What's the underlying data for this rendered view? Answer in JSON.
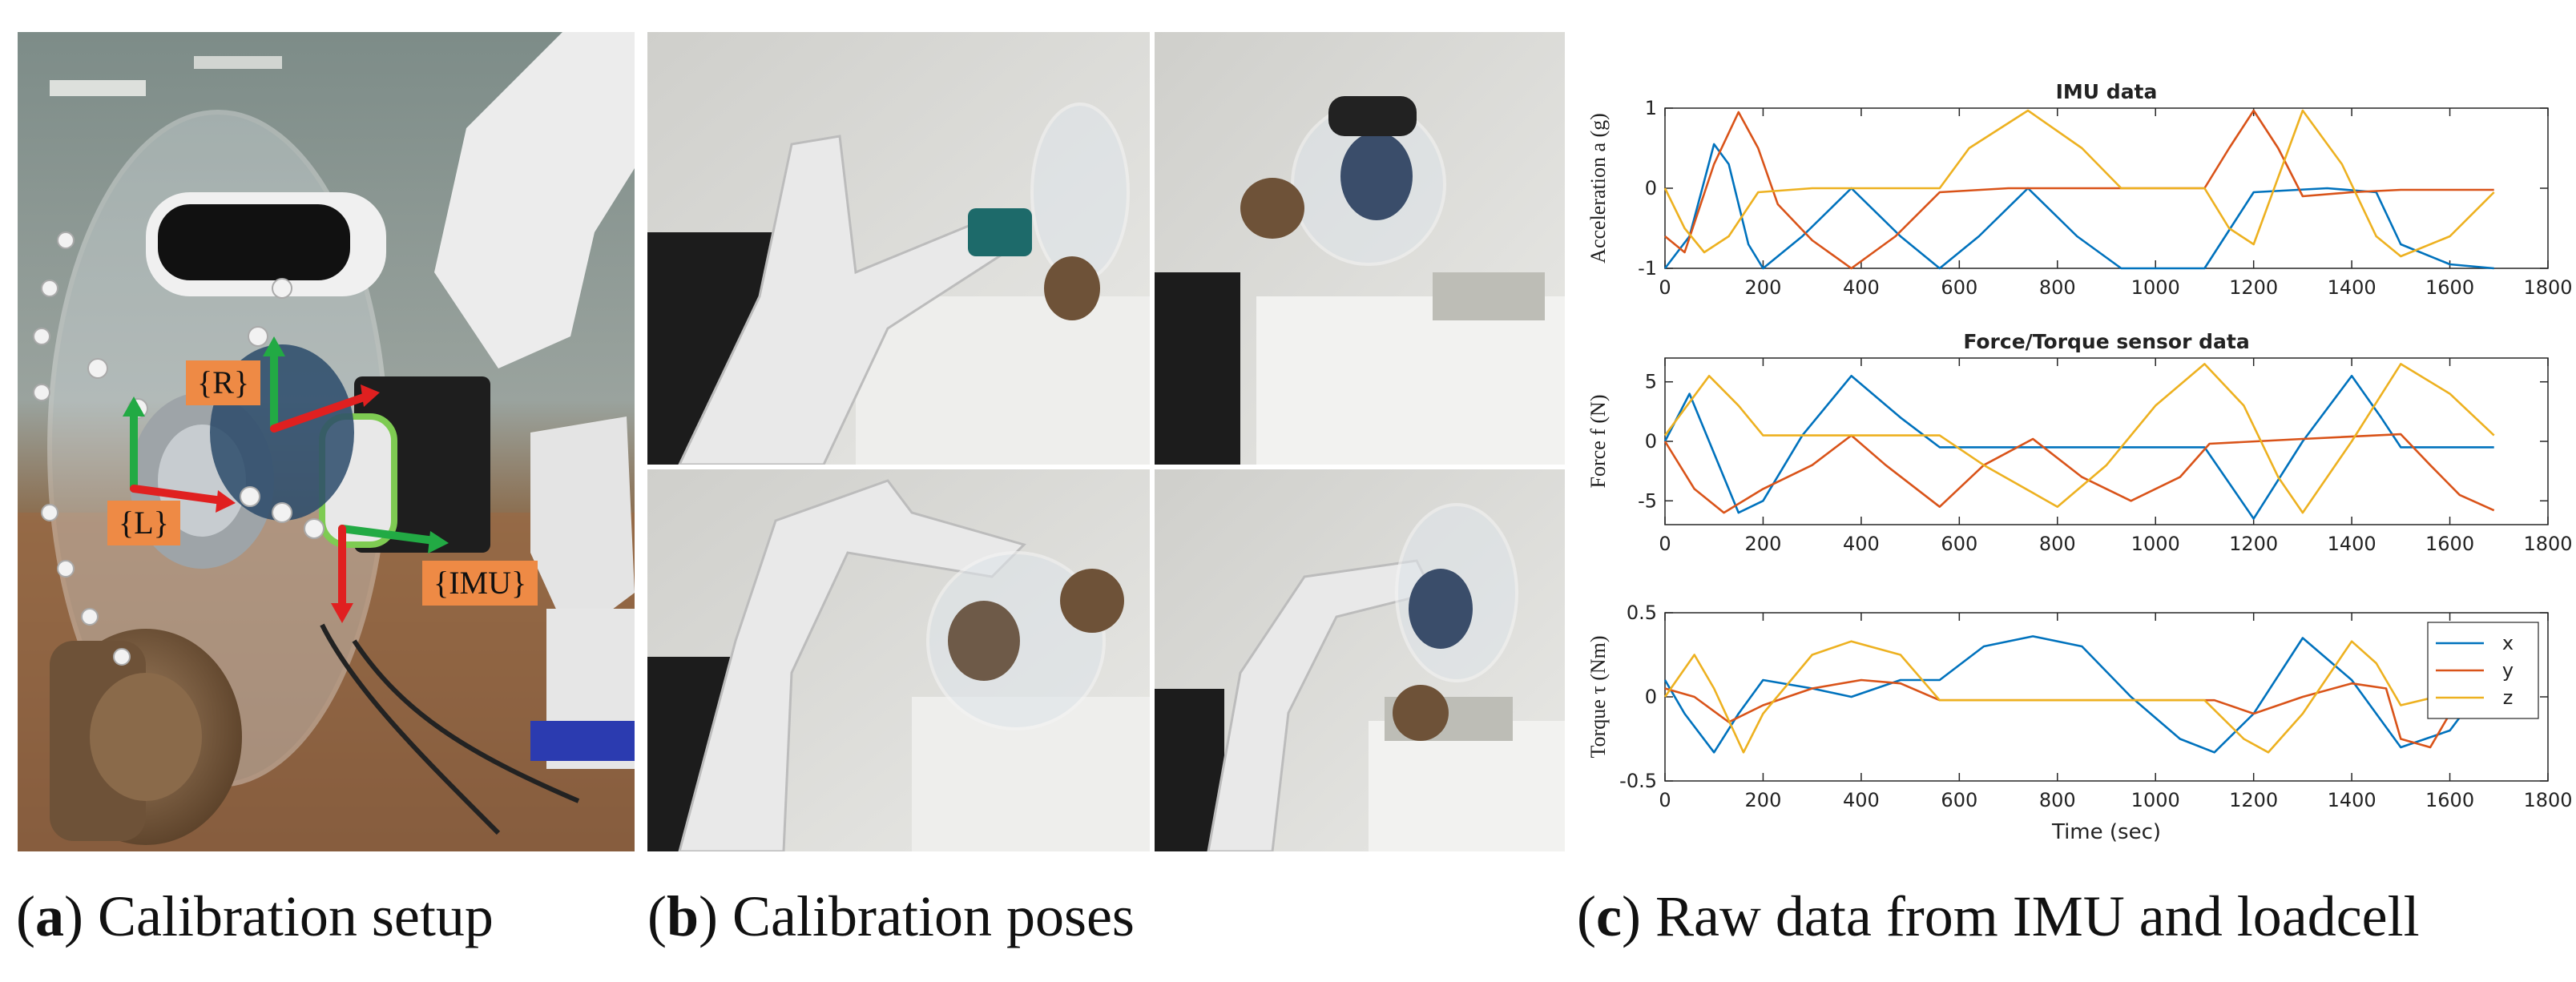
{
  "captions": {
    "a": {
      "letter": "a",
      "text": " Calibration setup"
    },
    "b": {
      "letter": "b",
      "text": " Calibration poses"
    },
    "c": {
      "letter": "c",
      "text": " Raw data from IMU and loadcell"
    }
  },
  "frame_labels": {
    "R": "{R}",
    "L": "{L}",
    "IMU": "{IMU}"
  },
  "colors": {
    "x": "#0072BD",
    "y": "#D95319",
    "z": "#EDB120",
    "robot": "#e9e9e9",
    "frame_label_bg": "#ee8a45",
    "axis_green": "#22aa44",
    "axis_red": "#e02020"
  },
  "chart_data": [
    {
      "type": "line",
      "title": "IMU data",
      "xlabel": "",
      "ylabel": "Acceleration a (g)",
      "xlim": [
        0,
        1800
      ],
      "ylim": [
        -1,
        1
      ],
      "xticks": [
        0,
        200,
        400,
        600,
        800,
        1000,
        1200,
        1400,
        1600,
        1800
      ],
      "yticks": [
        -1,
        0,
        1
      ],
      "series": [
        {
          "key": "x",
          "color": "#0072BD",
          "points": [
            [
              0,
              -1
            ],
            [
              50,
              -0.6
            ],
            [
              100,
              0.55
            ],
            [
              130,
              0.3
            ],
            [
              170,
              -0.7
            ],
            [
              200,
              -1
            ],
            [
              280,
              -0.6
            ],
            [
              380,
              0
            ],
            [
              480,
              -0.6
            ],
            [
              560,
              -1
            ],
            [
              640,
              -0.6
            ],
            [
              740,
              0
            ],
            [
              840,
              -0.6
            ],
            [
              930,
              -1
            ],
            [
              1100,
              -1
            ],
            [
              1200,
              -0.05
            ],
            [
              1350,
              0
            ],
            [
              1450,
              -0.05
            ],
            [
              1500,
              -0.7
            ],
            [
              1600,
              -0.95
            ],
            [
              1690,
              -1
            ]
          ]
        },
        {
          "key": "y",
          "color": "#D95319",
          "points": [
            [
              0,
              -0.6
            ],
            [
              40,
              -0.8
            ],
            [
              100,
              0.3
            ],
            [
              150,
              0.95
            ],
            [
              190,
              0.5
            ],
            [
              230,
              -0.2
            ],
            [
              300,
              -0.65
            ],
            [
              380,
              -1
            ],
            [
              470,
              -0.6
            ],
            [
              560,
              -0.05
            ],
            [
              700,
              0
            ],
            [
              900,
              0
            ],
            [
              1100,
              0
            ],
            [
              1150,
              0.5
            ],
            [
              1200,
              0.97
            ],
            [
              1250,
              0.5
            ],
            [
              1300,
              -0.1
            ],
            [
              1400,
              -0.05
            ],
            [
              1500,
              -0.02
            ],
            [
              1690,
              -0.02
            ]
          ]
        },
        {
          "key": "z",
          "color": "#EDB120",
          "points": [
            [
              0,
              0
            ],
            [
              40,
              -0.5
            ],
            [
              80,
              -0.8
            ],
            [
              130,
              -0.6
            ],
            [
              190,
              -0.05
            ],
            [
              300,
              0
            ],
            [
              560,
              0
            ],
            [
              620,
              0.5
            ],
            [
              740,
              0.97
            ],
            [
              850,
              0.5
            ],
            [
              930,
              0
            ],
            [
              1100,
              0
            ],
            [
              1150,
              -0.5
            ],
            [
              1200,
              -0.7
            ],
            [
              1300,
              0.97
            ],
            [
              1380,
              0.3
            ],
            [
              1450,
              -0.6
            ],
            [
              1500,
              -0.85
            ],
            [
              1600,
              -0.6
            ],
            [
              1690,
              -0.05
            ]
          ]
        }
      ]
    },
    {
      "type": "line",
      "title": "Force/Torque sensor data",
      "xlabel": "",
      "ylabel": "Force f (N)",
      "xlim": [
        0,
        1800
      ],
      "ylim": [
        -7,
        7
      ],
      "xticks": [
        0,
        200,
        400,
        600,
        800,
        1000,
        1200,
        1400,
        1600,
        1800
      ],
      "yticks": [
        -5,
        0,
        5
      ],
      "series": [
        {
          "key": "x",
          "color": "#0072BD",
          "points": [
            [
              0,
              0
            ],
            [
              50,
              4
            ],
            [
              100,
              -1
            ],
            [
              150,
              -6
            ],
            [
              200,
              -5
            ],
            [
              280,
              0.5
            ],
            [
              380,
              5.5
            ],
            [
              480,
              2
            ],
            [
              560,
              -0.5
            ],
            [
              700,
              -0.5
            ],
            [
              900,
              -0.5
            ],
            [
              1100,
              -0.5
            ],
            [
              1200,
              -6.5
            ],
            [
              1300,
              0
            ],
            [
              1400,
              5.5
            ],
            [
              1460,
              2
            ],
            [
              1500,
              -0.5
            ],
            [
              1690,
              -0.5
            ]
          ]
        },
        {
          "key": "y",
          "color": "#D95319",
          "points": [
            [
              0,
              0
            ],
            [
              60,
              -4
            ],
            [
              120,
              -6
            ],
            [
              200,
              -4
            ],
            [
              300,
              -2
            ],
            [
              380,
              0.5
            ],
            [
              450,
              -2
            ],
            [
              560,
              -5.5
            ],
            [
              650,
              -2
            ],
            [
              750,
              0.2
            ],
            [
              850,
              -3
            ],
            [
              950,
              -5
            ],
            [
              1050,
              -3
            ],
            [
              1110,
              -0.2
            ],
            [
              1300,
              0.2
            ],
            [
              1500,
              0.6
            ],
            [
              1560,
              -2
            ],
            [
              1620,
              -4.5
            ],
            [
              1690,
              -5.8
            ]
          ]
        },
        {
          "key": "z",
          "color": "#EDB120",
          "points": [
            [
              0,
              0.5
            ],
            [
              90,
              5.5
            ],
            [
              150,
              3
            ],
            [
              200,
              0.5
            ],
            [
              560,
              0.5
            ],
            [
              650,
              -2
            ],
            [
              800,
              -5.5
            ],
            [
              900,
              -2
            ],
            [
              1000,
              3
            ],
            [
              1100,
              6.5
            ],
            [
              1180,
              3
            ],
            [
              1250,
              -3
            ],
            [
              1300,
              -6
            ],
            [
              1400,
              0
            ],
            [
              1500,
              6.5
            ],
            [
              1600,
              4
            ],
            [
              1690,
              0.5
            ]
          ]
        }
      ]
    },
    {
      "type": "line",
      "title": "",
      "xlabel": "Time (sec)",
      "ylabel": "Torque τ (Nm)",
      "xlim": [
        0,
        1800
      ],
      "ylim": [
        -0.5,
        0.5
      ],
      "xticks": [
        0,
        200,
        400,
        600,
        800,
        1000,
        1200,
        1400,
        1600,
        1800
      ],
      "yticks": [
        -0.5,
        0,
        0.5
      ],
      "legend": {
        "placement": "top-right",
        "entries": [
          "x",
          "y",
          "z"
        ]
      },
      "series": [
        {
          "key": "x",
          "name": "x",
          "color": "#0072BD",
          "points": [
            [
              0,
              0.1
            ],
            [
              40,
              -0.1
            ],
            [
              100,
              -0.33
            ],
            [
              150,
              -0.1
            ],
            [
              200,
              0.1
            ],
            [
              300,
              0.05
            ],
            [
              380,
              0
            ],
            [
              480,
              0.1
            ],
            [
              560,
              0.1
            ],
            [
              650,
              0.3
            ],
            [
              750,
              0.36
            ],
            [
              850,
              0.3
            ],
            [
              950,
              0
            ],
            [
              1050,
              -0.25
            ],
            [
              1120,
              -0.33
            ],
            [
              1200,
              -0.1
            ],
            [
              1300,
              0.35
            ],
            [
              1400,
              0.1
            ],
            [
              1500,
              -0.3
            ],
            [
              1600,
              -0.2
            ],
            [
              1690,
              0.15
            ]
          ]
        },
        {
          "key": "y",
          "name": "y",
          "color": "#D95319",
          "points": [
            [
              0,
              0.05
            ],
            [
              60,
              0
            ],
            [
              130,
              -0.15
            ],
            [
              200,
              -0.05
            ],
            [
              300,
              0.05
            ],
            [
              400,
              0.1
            ],
            [
              480,
              0.08
            ],
            [
              560,
              -0.02
            ],
            [
              800,
              -0.02
            ],
            [
              1000,
              -0.02
            ],
            [
              1120,
              -0.02
            ],
            [
              1200,
              -0.1
            ],
            [
              1300,
              0
            ],
            [
              1400,
              0.08
            ],
            [
              1470,
              0.05
            ],
            [
              1500,
              -0.25
            ],
            [
              1560,
              -0.3
            ],
            [
              1600,
              -0.1
            ],
            [
              1690,
              0.05
            ]
          ]
        },
        {
          "key": "z",
          "name": "z",
          "color": "#EDB120",
          "points": [
            [
              0,
              0
            ],
            [
              60,
              0.25
            ],
            [
              100,
              0.05
            ],
            [
              160,
              -0.33
            ],
            [
              200,
              -0.1
            ],
            [
              300,
              0.25
            ],
            [
              380,
              0.33
            ],
            [
              480,
              0.25
            ],
            [
              560,
              -0.02
            ],
            [
              1100,
              -0.02
            ],
            [
              1180,
              -0.25
            ],
            [
              1230,
              -0.33
            ],
            [
              1300,
              -0.1
            ],
            [
              1400,
              0.33
            ],
            [
              1450,
              0.2
            ],
            [
              1500,
              -0.05
            ],
            [
              1600,
              0.02
            ],
            [
              1690,
              0.05
            ]
          ]
        }
      ]
    }
  ]
}
